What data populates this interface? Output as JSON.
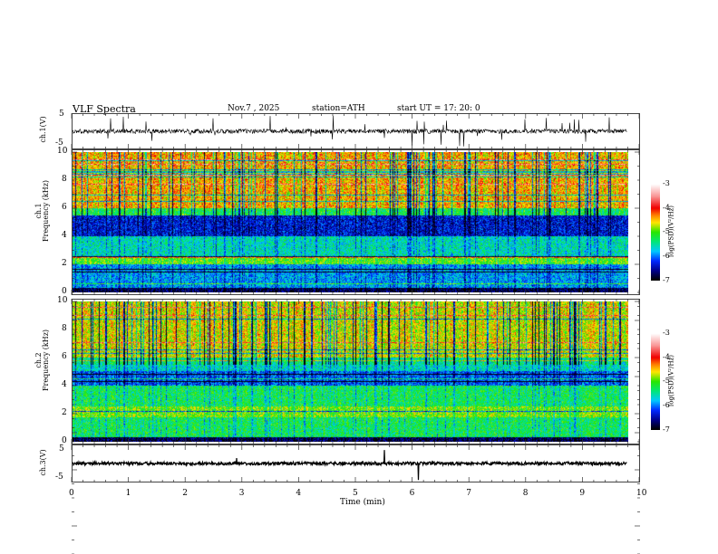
{
  "header": {
    "title": "VLF  Spectra",
    "date": "Nov.7  , 2025",
    "station": "station=ATH",
    "start_ut": "start  UT  =    17: 20: 0"
  },
  "chart_data": [
    {
      "type": "line",
      "name": "ch1-waveform",
      "ylabel": "ch.1(V)",
      "ylim": [
        -5,
        5
      ],
      "yticks": [
        "5",
        "-5"
      ],
      "xlim": [
        0,
        10
      ],
      "data_end_min": 9.8
    },
    {
      "type": "heatmap",
      "name": "ch1-spectrogram",
      "ylabel": "ch.1\nFrequency  (kHz)",
      "ylabel_line1": "ch.1",
      "ylabel_line2": "Frequency  (kHz)",
      "ylim": [
        0,
        10
      ],
      "yticks": [
        "10",
        "8",
        "6",
        "4",
        "2",
        "0"
      ],
      "colorbar": {
        "label": "log(PSD)(V²/Hz)",
        "range": [
          -7,
          -3
        ],
        "ticks": [
          "-3",
          "-4",
          "-5",
          "-6",
          "-7"
        ]
      }
    },
    {
      "type": "heatmap",
      "name": "ch2-spectrogram",
      "ylabel_line1": "ch.2",
      "ylabel_line2": "Frequency  (kHz)",
      "ylim": [
        0,
        10
      ],
      "yticks": [
        "10",
        "8",
        "6",
        "4",
        "2",
        "0"
      ],
      "colorbar": {
        "label": "log(PSD)(V²/Hz)",
        "range": [
          -7,
          -3
        ],
        "ticks": [
          "-3",
          "-4",
          "-5",
          "-6",
          "-7"
        ]
      }
    },
    {
      "type": "line",
      "name": "ch3-waveform",
      "ylabel": "ch.3(V)",
      "ylim": [
        -5,
        5
      ],
      "yticks": [
        "5",
        "-5"
      ],
      "level_v": 0
    }
  ],
  "xaxis": {
    "label": "Time  (min)",
    "ticks": [
      "0",
      "1",
      "2",
      "3",
      "4",
      "5",
      "6",
      "7",
      "8",
      "9",
      "10"
    ]
  }
}
